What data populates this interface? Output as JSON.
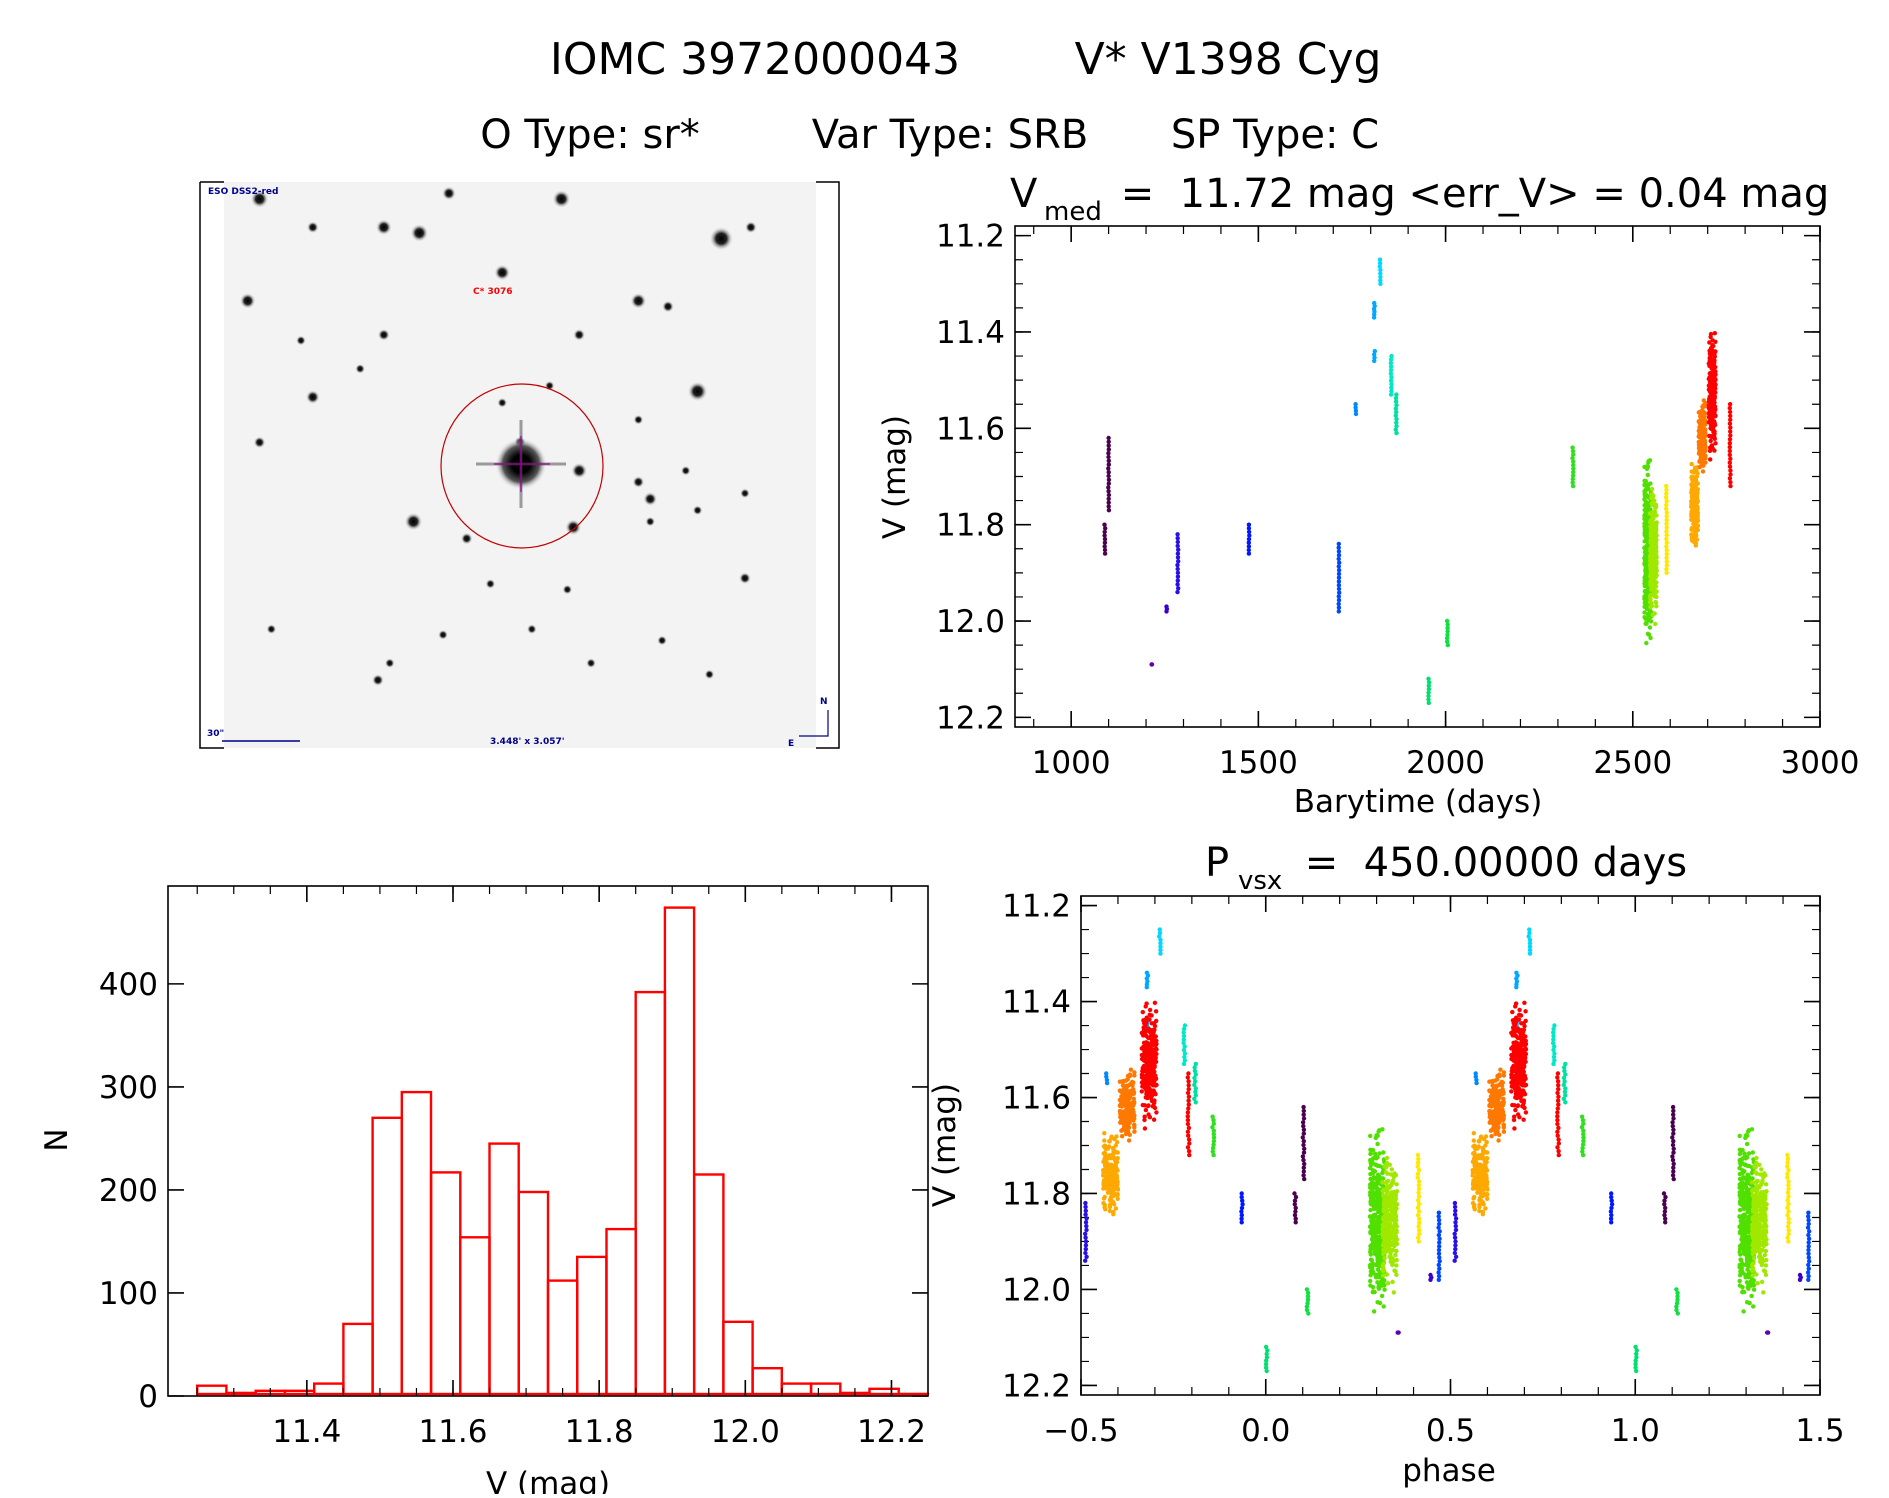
{
  "header": {
    "line1_id": "IOMC 3972000043",
    "line1_name": "V* V1398 Cyg",
    "otype": "O Type: sr*",
    "vartype": "Var Type: SRB",
    "sptype": "SP Type: C"
  },
  "finder": {
    "survey": "ESO DSS2-red",
    "neighbor_label": "C* 3076",
    "scale_label": "30\"",
    "fov_label": "3.448' x 3.057'",
    "north": "N",
    "east": "E",
    "colors": {
      "circle": "#c00000",
      "labels": "#00008b",
      "neighbor": "#ff0000",
      "crosshair": "#a000a0"
    }
  },
  "chart_data": [
    {
      "id": "light_curve",
      "type": "scatter",
      "title": "V_med = 11.72 mag <err_V> = 0.04 mag",
      "title_parts": {
        "v": "V",
        "sub": "med",
        "rest": " =  11.72 mag <err_V> = 0.04 mag"
      },
      "xlabel": "Barytime (days)",
      "ylabel": "V (mag)",
      "xlim": [
        850,
        3000
      ],
      "ylim": [
        12.22,
        11.18
      ],
      "y_inverted": true,
      "xticks": [
        1000,
        1500,
        2000,
        2500,
        3000
      ],
      "yticks": [
        "11.2",
        "11.4",
        "11.6",
        "11.8",
        "12.0",
        "12.2"
      ],
      "grid": false,
      "color_encoding": "rainbow by time",
      "clusters": [
        {
          "t": 1090,
          "v": [
            11.8,
            11.86
          ],
          "color": "#4b0050"
        },
        {
          "t": 1100,
          "v": [
            11.62,
            11.77
          ],
          "color": "#4b0050"
        },
        {
          "t": 1215,
          "v": [
            12.09,
            12.09
          ],
          "color": "#6000b0"
        },
        {
          "t": 1255,
          "v": [
            11.97,
            11.98
          ],
          "color": "#3a00d0"
        },
        {
          "t": 1285,
          "v": [
            11.82,
            11.94
          ],
          "color": "#2a10e8"
        },
        {
          "t": 1475,
          "v": [
            11.8,
            11.86
          ],
          "color": "#0018ff"
        },
        {
          "t": 1715,
          "v": [
            11.84,
            11.98
          ],
          "color": "#0048ff"
        },
        {
          "t": 1760,
          "v": [
            11.55,
            11.57
          ],
          "color": "#0088ff"
        },
        {
          "t": 1810,
          "v": [
            11.34,
            11.37
          ],
          "color": "#00a8ff"
        },
        {
          "t": 1810,
          "v": [
            11.44,
            11.46
          ],
          "color": "#00a8ff"
        },
        {
          "t": 1825,
          "v": [
            11.25,
            11.3
          ],
          "color": "#00d8ff"
        },
        {
          "t": 1855,
          "v": [
            11.45,
            11.53
          ],
          "color": "#00e8c8"
        },
        {
          "t": 1868,
          "v": [
            11.53,
            11.61
          ],
          "color": "#00e0a0"
        },
        {
          "t": 1955,
          "v": [
            12.12,
            12.17
          ],
          "color": "#00e070"
        },
        {
          "t": 2005,
          "v": [
            12.0,
            12.05
          ],
          "color": "#10e040"
        },
        {
          "t": 2340,
          "v": [
            11.64,
            11.72
          ],
          "color": "#30e020"
        },
        {
          "t": 2540,
          "v": [
            11.64,
            12.08
          ],
          "color": "#50e000"
        },
        {
          "t": 2555,
          "v": [
            11.7,
            12.02
          ],
          "color": "#a0e800"
        },
        {
          "t": 2590,
          "v": [
            11.72,
            11.9
          ],
          "color": "#ffe800"
        },
        {
          "t": 2665,
          "v": [
            11.65,
            11.87
          ],
          "color": "#ffa800"
        },
        {
          "t": 2685,
          "v": [
            11.52,
            11.72
          ],
          "color": "#ff7800"
        },
        {
          "t": 2712,
          "v": [
            11.37,
            11.68
          ],
          "color": "#ff0000"
        },
        {
          "t": 2760,
          "v": [
            11.55,
            11.72
          ],
          "color": "#ff0000"
        }
      ]
    },
    {
      "id": "phased_curve",
      "type": "scatter",
      "title": "P_vsx = 450.00000 days",
      "title_parts": {
        "p": "P",
        "sub": "vsx",
        "rest": " =  450.00000 days"
      },
      "period_days": 450.0,
      "xlabel": "phase",
      "ylabel": "V (mag)",
      "xlim": [
        -0.5,
        1.5
      ],
      "ylim": [
        12.22,
        11.18
      ],
      "y_inverted": true,
      "xticks": [
        "−0.5",
        "0.0",
        "0.5",
        "1.0",
        "1.5"
      ],
      "yticks": [
        "11.2",
        "11.4",
        "11.6",
        "11.8",
        "12.0",
        "12.2"
      ],
      "grid": false,
      "source": "light_curve clusters folded on period"
    },
    {
      "id": "histogram",
      "type": "bar",
      "xlabel": "V (mag)",
      "ylabel": "N",
      "bin_start": 11.25,
      "bin_width": 0.04,
      "values": [
        10,
        3,
        5,
        5,
        12,
        70,
        270,
        295,
        217,
        154,
        245,
        198,
        112,
        135,
        162,
        392,
        474,
        215,
        72,
        27,
        12,
        12,
        3,
        7,
        2
      ],
      "xlim": [
        11.21,
        12.25
      ],
      "ylim": [
        0,
        495
      ],
      "xticks": [
        "11.4",
        "11.6",
        "11.8",
        "12.0",
        "12.2"
      ],
      "yticks": [
        "0",
        "100",
        "200",
        "300",
        "400"
      ],
      "bar_color": "#ff0000",
      "fill": "none",
      "grid": false
    }
  ]
}
